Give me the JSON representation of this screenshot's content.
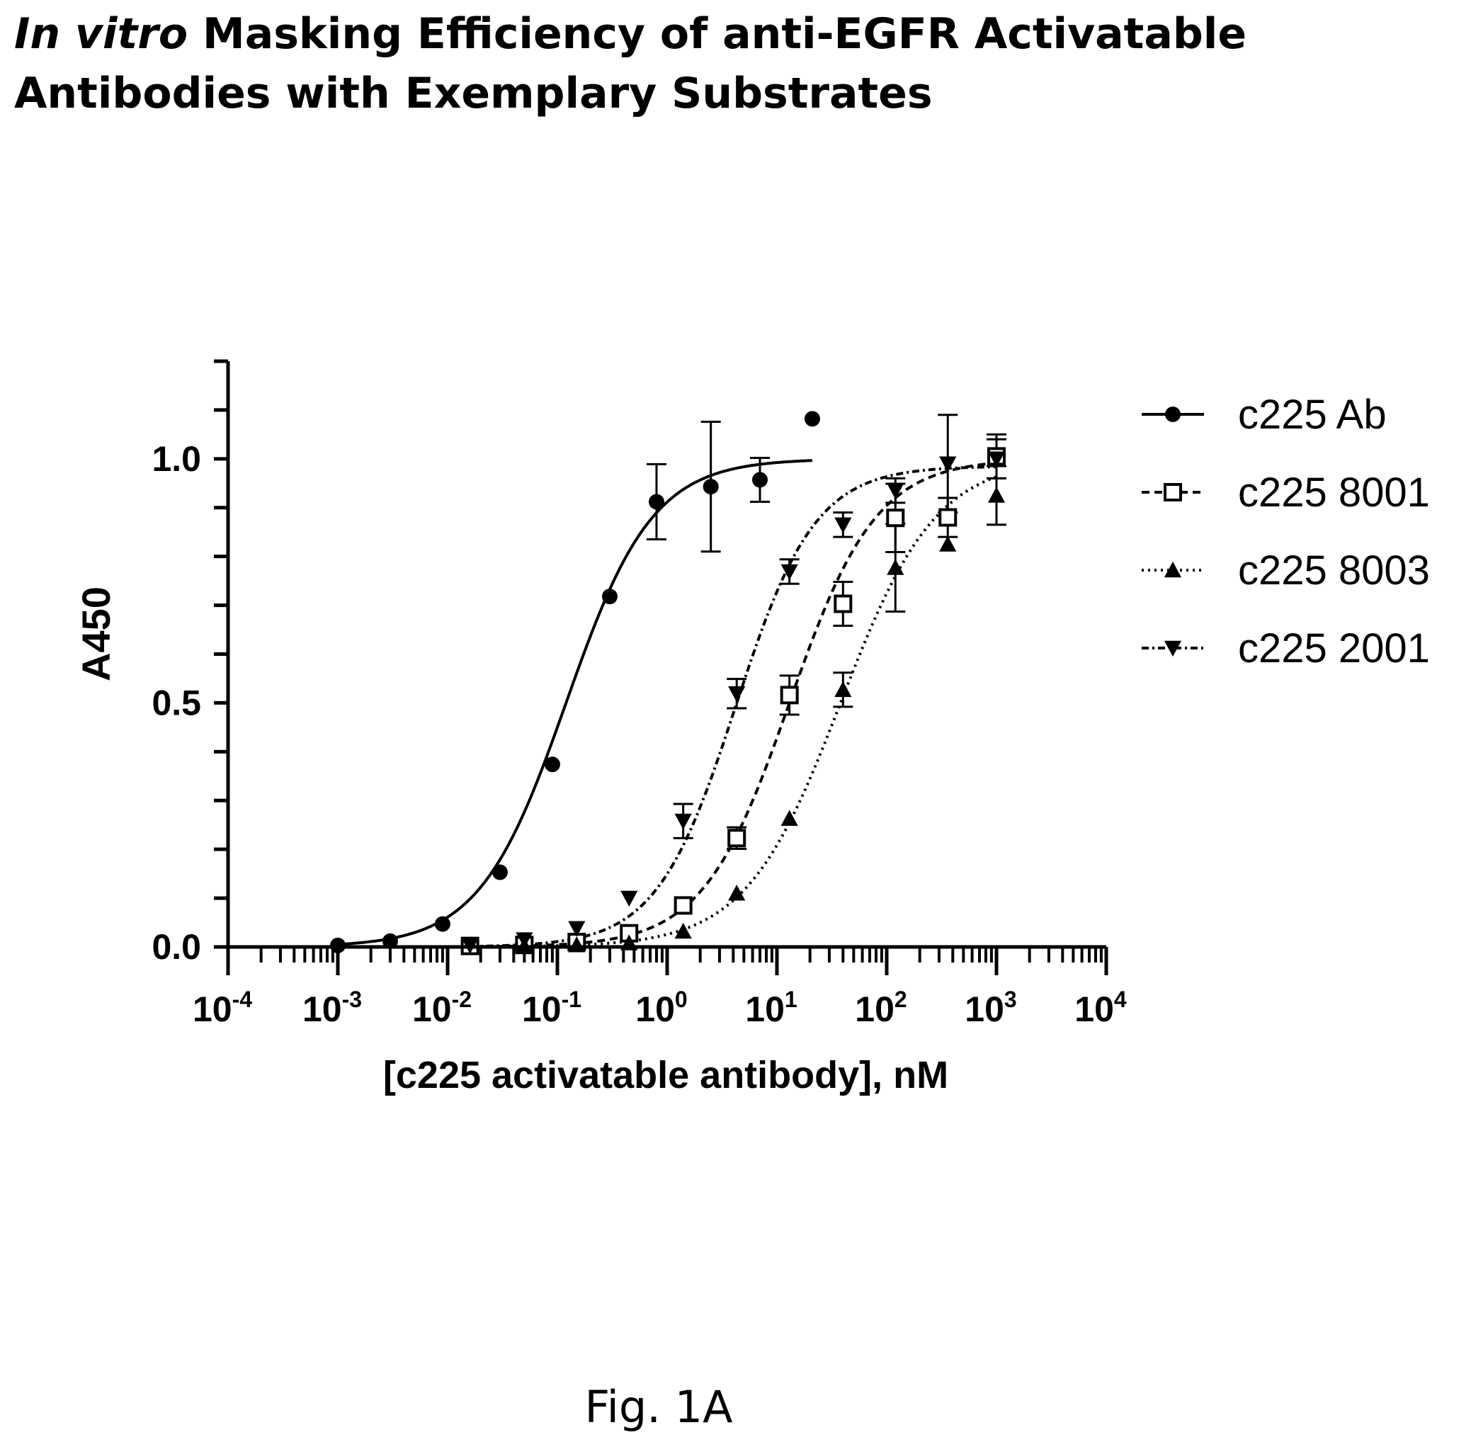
{
  "chart_data": {
    "type": "scatter",
    "title_italic": "In vitro",
    "title_line1_rest": " Masking Efficiency of anti-EGFR Activatable",
    "title_line2": "Antibodies with Exemplary Substrates",
    "xlabel": "[c225 activatable antibody], nM",
    "ylabel": "A450",
    "x_scale": "log",
    "xlim": [
      0.0001,
      10000
    ],
    "ylim": [
      0,
      1.2
    ],
    "x_tick_exponents": [
      "-4",
      "-3",
      "-2",
      "-1",
      "0",
      "1",
      "2",
      "3",
      "4"
    ],
    "y_ticks": [
      "0.0",
      "0.5",
      "1.0"
    ],
    "legend_position": "right",
    "series": [
      {
        "name": "c225 Ab",
        "marker": "circle-filled",
        "line": "solid",
        "x": [
          0.001,
          0.003,
          0.009,
          0.03,
          0.09,
          0.3,
          0.8,
          2.5,
          7,
          21
        ],
        "y": [
          0.003,
          0.012,
          0.047,
          0.153,
          0.374,
          0.718,
          0.912,
          0.943,
          0.957,
          1.082
        ],
        "err": [
          0,
          0,
          0,
          0,
          0,
          0,
          0.077,
          0.133,
          0.045,
          0
        ],
        "fit": {
          "bottom": 0,
          "top": 1.0,
          "ec50": 0.12,
          "hill": 1.1,
          "x_from": 0.001,
          "x_to": 21
        }
      },
      {
        "name": "c225 8001",
        "marker": "square-open",
        "line": "dashed",
        "x": [
          0.016,
          0.05,
          0.15,
          0.45,
          1.4,
          4.3,
          13,
          40,
          120,
          360,
          1000
        ],
        "y": [
          0.002,
          0.004,
          0.01,
          0.028,
          0.085,
          0.223,
          0.516,
          0.703,
          0.879,
          0.88,
          1.005
        ],
        "err": [
          0,
          0,
          0,
          0,
          0,
          0.022,
          0.04,
          0.045,
          0.07,
          0.04,
          0.045
        ],
        "fit": {
          "bottom": 0,
          "top": 1.0,
          "ec50": 13,
          "hill": 1.1,
          "x_from": 0.016,
          "x_to": 1000
        }
      },
      {
        "name": "c225 8003",
        "marker": "triangle-up-filled",
        "line": "dotted",
        "x": [
          0.05,
          0.15,
          0.45,
          1.4,
          4.3,
          13,
          40,
          120,
          360,
          1000
        ],
        "y": [
          0.002,
          0.004,
          0.008,
          0.032,
          0.11,
          0.263,
          0.527,
          0.777,
          0.825,
          0.925
        ],
        "err": [
          0,
          0,
          0,
          0,
          0,
          0,
          0.035,
          0.09,
          0,
          0.06
        ],
        "fit": {
          "bottom": 0,
          "top": 1.0,
          "ec50": 38,
          "hill": 1.0,
          "x_from": 0.05,
          "x_to": 1000
        }
      },
      {
        "name": "c225 2001",
        "marker": "triangle-down-filled",
        "line": "dashdot",
        "x": [
          0.016,
          0.05,
          0.15,
          0.45,
          1.4,
          4.3,
          13,
          40,
          120,
          360,
          1000
        ],
        "y": [
          0.003,
          0.015,
          0.038,
          0.1,
          0.258,
          0.519,
          0.769,
          0.865,
          0.935,
          0.99,
          1.0
        ],
        "err": [
          0,
          0,
          0,
          0,
          0.035,
          0.03,
          0.025,
          0.025,
          0.025,
          0.1,
          0.04
        ],
        "fit": {
          "bottom": 0,
          "top": 0.985,
          "ec50": 4.2,
          "hill": 1.2,
          "x_from": 0.016,
          "x_to": 1000
        }
      }
    ]
  },
  "caption": "Fig. 1A"
}
